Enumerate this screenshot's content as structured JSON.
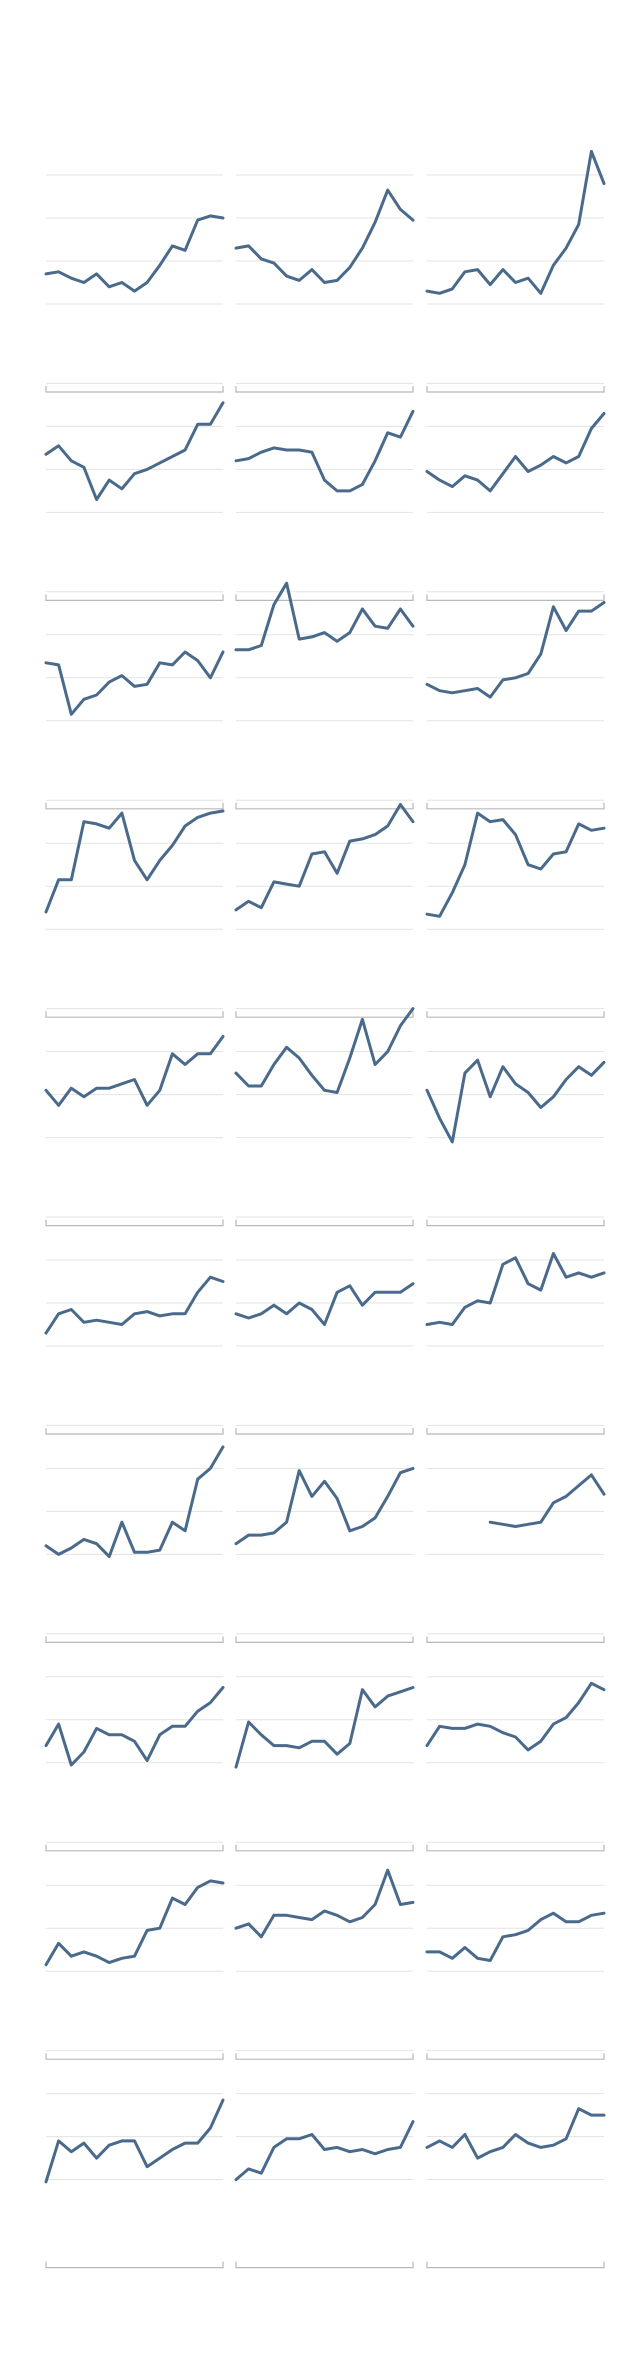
{
  "chart_data": {
    "type": "line",
    "layout": {
      "rows": 10,
      "cols": 3
    },
    "x_points": 15,
    "ylim": [
      0,
      4
    ],
    "gridlines": [
      1,
      2,
      3,
      4
    ],
    "grid": true,
    "color": "#4a6a8c",
    "panels": [
      [
        1.7,
        1.75,
        1.6,
        1.5,
        1.7,
        1.4,
        1.5,
        1.3,
        1.5,
        1.9,
        2.35,
        2.25,
        2.95,
        3.05,
        3.0
      ],
      [
        2.3,
        2.35,
        2.05,
        1.95,
        1.65,
        1.55,
        1.8,
        1.5,
        1.55,
        1.85,
        2.3,
        2.9,
        3.65,
        3.2,
        2.95
      ],
      [
        1.3,
        1.25,
        1.35,
        1.75,
        1.8,
        1.45,
        1.8,
        1.5,
        1.6,
        1.25,
        1.9,
        2.3,
        2.85,
        4.55,
        3.8
      ],
      [
        2.35,
        2.55,
        2.2,
        2.05,
        1.3,
        1.75,
        1.55,
        1.9,
        2.0,
        2.15,
        2.3,
        2.45,
        3.05,
        3.05,
        3.55
      ],
      [
        2.2,
        2.25,
        2.4,
        2.5,
        2.45,
        2.45,
        2.4,
        1.75,
        1.5,
        1.5,
        1.65,
        2.2,
        2.85,
        2.75,
        3.35
      ],
      [
        1.95,
        1.75,
        1.6,
        1.85,
        1.75,
        1.5,
        1.9,
        2.3,
        1.95,
        2.1,
        2.3,
        2.15,
        2.3,
        2.95,
        3.3
      ],
      [
        2.35,
        2.3,
        1.15,
        1.5,
        1.6,
        1.9,
        2.05,
        1.8,
        1.85,
        2.35,
        2.3,
        2.6,
        2.4,
        2.0,
        2.6
      ],
      [
        2.65,
        2.65,
        2.75,
        3.7,
        4.2,
        2.9,
        2.95,
        3.05,
        2.85,
        3.05,
        3.6,
        3.2,
        3.15,
        3.6,
        3.2
      ],
      [
        1.85,
        1.7,
        1.65,
        1.7,
        1.75,
        1.55,
        1.95,
        2.0,
        2.1,
        2.55,
        3.65,
        3.1,
        3.55,
        3.55,
        3.75
      ],
      [
        1.4,
        2.15,
        2.15,
        3.5,
        3.45,
        3.35,
        3.7,
        2.6,
        2.15,
        2.6,
        2.95,
        3.4,
        3.6,
        3.7,
        3.75
      ],
      [
        1.45,
        1.65,
        1.5,
        2.1,
        2.05,
        2.0,
        2.75,
        2.8,
        2.3,
        3.05,
        3.1,
        3.2,
        3.4,
        3.9,
        3.5
      ],
      [
        1.35,
        1.3,
        1.85,
        2.5,
        3.7,
        3.5,
        3.55,
        3.2,
        2.5,
        2.4,
        2.75,
        2.8,
        3.45,
        3.3,
        3.35
      ],
      [
        2.1,
        1.75,
        2.15,
        1.95,
        2.15,
        2.15,
        2.25,
        2.35,
        1.75,
        2.1,
        2.95,
        2.7,
        2.95,
        2.95,
        3.35
      ],
      [
        2.5,
        2.2,
        2.2,
        2.7,
        3.1,
        2.85,
        2.45,
        2.1,
        2.05,
        2.85,
        3.75,
        2.7,
        3.0,
        3.6,
        4.0
      ],
      [
        2.1,
        1.45,
        0.9,
        2.5,
        2.8,
        1.95,
        2.65,
        2.25,
        2.05,
        1.7,
        1.95,
        2.35,
        2.65,
        2.45,
        2.75
      ],
      [
        1.3,
        1.75,
        1.85,
        1.55,
        1.6,
        1.55,
        1.5,
        1.75,
        1.8,
        1.7,
        1.75,
        1.75,
        2.25,
        2.6,
        2.5
      ],
      [
        1.75,
        1.65,
        1.75,
        1.95,
        1.75,
        2.0,
        1.85,
        1.5,
        2.25,
        2.4,
        1.95,
        2.25,
        2.25,
        2.25,
        2.45
      ],
      [
        1.5,
        1.55,
        1.5,
        1.9,
        2.05,
        2.0,
        2.9,
        3.05,
        2.45,
        2.3,
        3.15,
        2.6,
        2.7,
        2.6,
        2.7
      ],
      [
        1.2,
        1.0,
        1.15,
        1.35,
        1.25,
        0.95,
        1.75,
        1.05,
        1.05,
        1.1,
        1.75,
        1.55,
        2.75,
        3.0,
        3.5
      ],
      [
        1.25,
        1.45,
        1.45,
        1.5,
        1.75,
        2.95,
        2.35,
        2.7,
        2.3,
        1.55,
        1.65,
        1.85,
        2.35,
        2.9,
        3.0
      ],
      [
        null,
        null,
        null,
        null,
        null,
        1.75,
        1.7,
        1.65,
        1.7,
        1.75,
        2.2,
        2.35,
        2.6,
        2.85,
        2.4
      ],
      [
        1.4,
        1.9,
        0.95,
        1.25,
        1.8,
        1.65,
        1.65,
        1.5,
        1.05,
        1.65,
        1.85,
        1.85,
        2.2,
        2.4,
        2.75
      ],
      [
        0.9,
        1.95,
        1.65,
        1.4,
        1.4,
        1.35,
        1.5,
        1.5,
        1.2,
        1.45,
        2.7,
        2.3,
        2.55,
        2.65,
        2.75
      ],
      [
        1.4,
        1.85,
        1.8,
        1.8,
        1.9,
        1.85,
        1.7,
        1.6,
        1.3,
        1.5,
        1.9,
        2.05,
        2.4,
        2.85,
        2.7
      ],
      [
        1.15,
        1.65,
        1.35,
        1.45,
        1.35,
        1.2,
        1.3,
        1.35,
        1.95,
        2.0,
        2.7,
        2.55,
        2.95,
        3.1,
        3.05
      ],
      [
        2.0,
        2.1,
        1.8,
        2.3,
        2.3,
        2.25,
        2.2,
        2.4,
        2.3,
        2.15,
        2.25,
        2.55,
        3.35,
        2.55,
        2.6
      ],
      [
        1.45,
        1.45,
        1.3,
        1.55,
        1.3,
        1.25,
        1.8,
        1.85,
        1.95,
        2.2,
        2.35,
        2.15,
        2.15,
        2.3,
        2.35
      ],
      [
        0.95,
        1.9,
        1.65,
        1.85,
        1.5,
        1.8,
        1.9,
        1.9,
        1.3,
        1.5,
        1.7,
        1.85,
        1.85,
        2.2,
        2.85
      ],
      [
        1.0,
        1.25,
        1.15,
        1.75,
        1.95,
        1.95,
        2.05,
        1.7,
        1.75,
        1.65,
        1.7,
        1.6,
        1.7,
        1.75,
        2.35
      ],
      [
        1.75,
        1.9,
        1.75,
        2.05,
        1.5,
        1.65,
        1.75,
        2.05,
        1.85,
        1.75,
        1.8,
        1.95,
        2.65,
        2.5,
        2.5
      ]
    ]
  }
}
